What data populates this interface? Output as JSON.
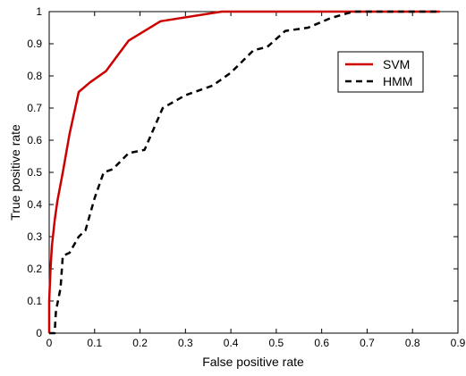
{
  "chart_data": {
    "type": "line",
    "title": "",
    "xlabel": "False positive rate",
    "ylabel": "True positive rate",
    "xlim": [
      0,
      0.9
    ],
    "ylim": [
      0,
      1
    ],
    "xticks": [
      "0",
      "0.1",
      "0.2",
      "0.3",
      "0.4",
      "0.5",
      "0.6",
      "0.7",
      "0.8",
      "0.9"
    ],
    "yticks": [
      "0",
      "0.1",
      "0.2",
      "0.3",
      "0.4",
      "0.5",
      "0.6",
      "0.7",
      "0.8",
      "0.9",
      "1"
    ],
    "grid": false,
    "legend_position": "top-right",
    "series": [
      {
        "name": "SVM",
        "color": "#cc0000",
        "style": "solid",
        "points": [
          [
            0,
            0
          ],
          [
            0,
            0.1
          ],
          [
            0.003,
            0.2
          ],
          [
            0.006,
            0.27
          ],
          [
            0.012,
            0.35
          ],
          [
            0.018,
            0.41
          ],
          [
            0.03,
            0.5
          ],
          [
            0.045,
            0.62
          ],
          [
            0.065,
            0.75
          ],
          [
            0.09,
            0.78
          ],
          [
            0.125,
            0.815
          ],
          [
            0.175,
            0.91
          ],
          [
            0.245,
            0.97
          ],
          [
            0.38,
            1.0
          ],
          [
            0.86,
            1.0
          ]
        ]
      },
      {
        "name": "HMM",
        "color": "#000000",
        "style": "dashed",
        "points": [
          [
            0,
            0
          ],
          [
            0.012,
            0.0
          ],
          [
            0.015,
            0.07
          ],
          [
            0.025,
            0.14
          ],
          [
            0.03,
            0.24
          ],
          [
            0.045,
            0.25
          ],
          [
            0.065,
            0.3
          ],
          [
            0.08,
            0.32
          ],
          [
            0.1,
            0.42
          ],
          [
            0.12,
            0.5
          ],
          [
            0.14,
            0.51
          ],
          [
            0.175,
            0.56
          ],
          [
            0.21,
            0.57
          ],
          [
            0.25,
            0.7
          ],
          [
            0.3,
            0.74
          ],
          [
            0.36,
            0.77
          ],
          [
            0.4,
            0.81
          ],
          [
            0.45,
            0.88
          ],
          [
            0.48,
            0.89
          ],
          [
            0.52,
            0.94
          ],
          [
            0.57,
            0.95
          ],
          [
            0.62,
            0.98
          ],
          [
            0.67,
            1.0
          ],
          [
            0.86,
            1.0
          ]
        ]
      }
    ]
  }
}
